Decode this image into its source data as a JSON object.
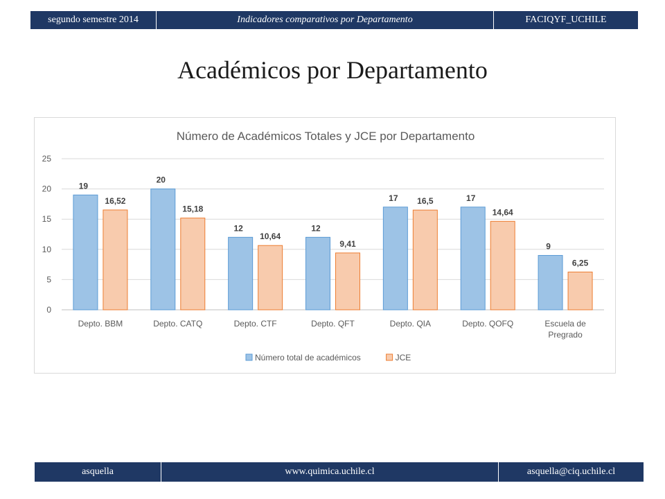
{
  "header": {
    "period": "segundo semestre 2014",
    "subtitle": "Indicadores comparativos por Departamento",
    "org": "FACIQYF_UCHILE"
  },
  "page_title": "Académicos por Departamento",
  "chart_data": {
    "type": "bar",
    "title": "Número de Académicos Totales y JCE por Departamento",
    "xlabel": "",
    "ylabel": "",
    "ylim": [
      0,
      25
    ],
    "yticks": [
      "0",
      "5",
      "10",
      "15",
      "20",
      "25"
    ],
    "grid": true,
    "legend_position": "bottom",
    "categories": [
      "Depto. BBM",
      "Depto. CATQ",
      "Depto. CTF",
      "Depto. QFT",
      "Depto. QIA",
      "Depto. QOFQ",
      "Escuela de Pregrado"
    ],
    "series": [
      {
        "name": "Número total de académicos",
        "color": "#9dc3e6",
        "stroke": "#5b9bd5",
        "values": [
          19,
          20,
          12,
          12,
          17,
          17,
          9
        ],
        "labels": [
          "19",
          "20",
          "12",
          "12",
          "17",
          "17",
          "9"
        ]
      },
      {
        "name": "JCE",
        "color": "#f8cbad",
        "stroke": "#ed7d31",
        "values": [
          16.52,
          15.18,
          10.64,
          9.41,
          16.5,
          14.64,
          6.25
        ],
        "labels": [
          "16,52",
          "15,18",
          "10,64",
          "9,41",
          "16,5",
          "14,64",
          "6,25"
        ]
      }
    ]
  },
  "footer": {
    "author": "asquella",
    "website": "www.quimica.uchile.cl",
    "email": "asquella@ciq.uchile.cl"
  }
}
